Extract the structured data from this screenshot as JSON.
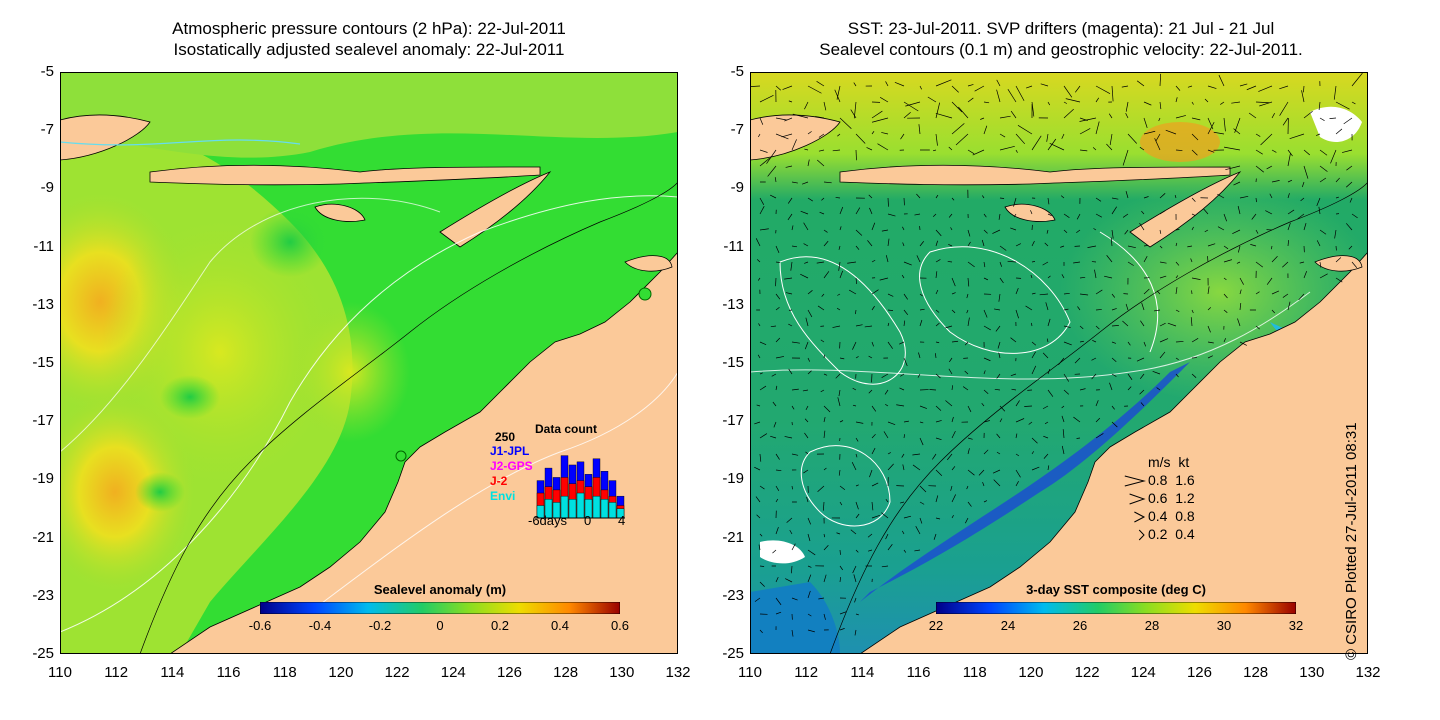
{
  "left_panel": {
    "title_line1": "Atmospheric pressure contours (2 hPa): 22-Jul-2011",
    "title_line2": "Isostatically adjusted sealevel anomaly: 22-Jul-2011",
    "colorbar": {
      "label": "Sealevel anomaly (m)",
      "ticks": [
        "-0.6",
        "-0.4",
        "-0.2",
        "0",
        "0.2",
        "0.4",
        "0.6"
      ]
    },
    "data_count": {
      "title": "Data count",
      "max_label": "250",
      "series": [
        {
          "name": "J1-JPL",
          "color": "#0000ff"
        },
        {
          "name": "J2-GPS",
          "color": "#ff00ff"
        },
        {
          "name": "J-2",
          "color": "#ff0000"
        },
        {
          "name": "Envi",
          "color": "#00e0e0"
        }
      ],
      "x_labels": [
        "-6days",
        "0",
        "4"
      ],
      "bars_total": [
        120,
        160,
        130,
        200,
        170,
        180,
        140,
        190,
        150,
        120,
        70
      ],
      "bars_mid": [
        80,
        100,
        90,
        130,
        110,
        120,
        100,
        130,
        90,
        70,
        40
      ],
      "bars_low": [
        40,
        60,
        50,
        70,
        60,
        80,
        60,
        70,
        60,
        50,
        30
      ]
    }
  },
  "right_panel": {
    "title_line1": "SST: 23-Jul-2011. SVP drifters (magenta): 21 Jul - 21 Jul",
    "title_line2": "Sealevel contours (0.1 m) and geostrophic velocity: 22-Jul-2011.",
    "colorbar": {
      "label": "3-day SST composite (deg C)",
      "ticks": [
        "22",
        "24",
        "26",
        "28",
        "30",
        "32"
      ]
    },
    "velocity_legend": {
      "header": "m/s  kt",
      "rows": [
        "0.8  1.6",
        "0.6  1.2",
        "0.4  0.8",
        "0.2  0.4"
      ],
      "speeds": [
        0.8,
        0.6,
        0.4,
        0.2
      ]
    }
  },
  "axes": {
    "y_ticks": [
      "-5",
      "-7",
      "-9",
      "-11",
      "-13",
      "-15",
      "-17",
      "-19",
      "-21",
      "-23",
      "-25"
    ],
    "x_ticks": [
      "110",
      "112",
      "114",
      "116",
      "118",
      "120",
      "122",
      "124",
      "126",
      "128",
      "130",
      "132"
    ],
    "lon_range": [
      110,
      132
    ],
    "lat_range": [
      -25,
      -5
    ]
  },
  "credit": "© CSIRO Plotted 27-Jul-2011 08:31",
  "colors": {
    "land": "#fbc999",
    "sla_ocean": "#33dd33",
    "sst_ocean": "#22aa66"
  }
}
